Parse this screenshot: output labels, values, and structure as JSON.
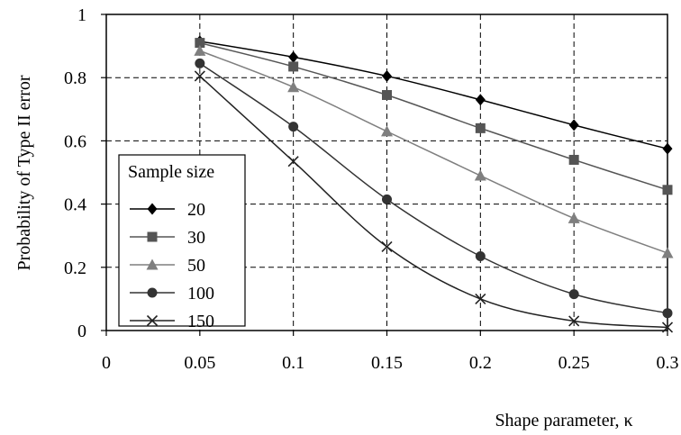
{
  "chart_data": {
    "type": "line",
    "xlabel": "Shape parameter, κ",
    "ylabel": "Probability of Type II error",
    "xlim": [
      0,
      0.3
    ],
    "ylim": [
      0,
      1
    ],
    "x_ticks": [
      "0",
      "0.05",
      "0.1",
      "0.15",
      "0.2",
      "0.25",
      "0.3"
    ],
    "y_ticks": [
      "0",
      "0.2",
      "0.4",
      "0.6",
      "0.8",
      "1"
    ],
    "grid": "dashed",
    "legend_title": "Sample size",
    "legend_position": "left",
    "x": [
      0.05,
      0.1,
      0.15,
      0.2,
      0.25,
      0.3
    ],
    "series": [
      {
        "name": "20",
        "marker": "diamond",
        "color": "#000000",
        "values": [
          0.915,
          0.865,
          0.805,
          0.73,
          0.65,
          0.575
        ]
      },
      {
        "name": "30",
        "marker": "square",
        "color": "#555555",
        "values": [
          0.91,
          0.835,
          0.745,
          0.64,
          0.54,
          0.445
        ]
      },
      {
        "name": "50",
        "marker": "triangle",
        "color": "#7f7f7f",
        "values": [
          0.885,
          0.77,
          0.63,
          0.49,
          0.355,
          0.245
        ]
      },
      {
        "name": "100",
        "marker": "circle",
        "color": "#333333",
        "values": [
          0.845,
          0.645,
          0.415,
          0.235,
          0.115,
          0.055
        ]
      },
      {
        "name": "150",
        "marker": "cross",
        "color": "#222222",
        "values": [
          0.805,
          0.535,
          0.265,
          0.1,
          0.03,
          0.01
        ]
      }
    ]
  }
}
